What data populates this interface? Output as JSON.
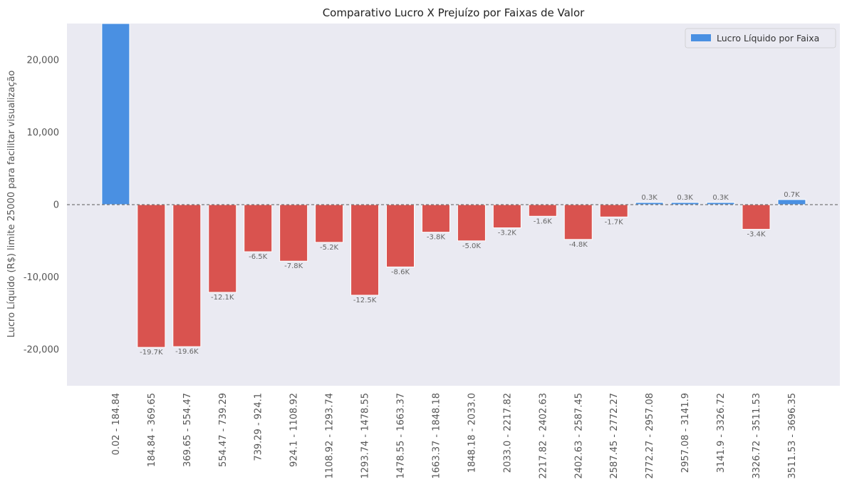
{
  "chart_data": {
    "type": "bar",
    "title": "Comparativo Lucro X Prejuízo por Faixas de Valor",
    "ylabel": "Lucro Líquido (R$) limite 25000 para facilitar visualização",
    "xlabel": "",
    "ylim": [
      -25000,
      25000
    ],
    "yticks": [
      -20000,
      -10000,
      0,
      10000,
      20000
    ],
    "ytick_labels": [
      "-20,000",
      "-10,000",
      "0",
      "10,000",
      "20,000"
    ],
    "categories": [
      "0.02 - 184.84",
      "184.84 - 369.65",
      "369.65 - 554.47",
      "554.47 - 739.29",
      "739.29 - 924.1",
      "924.1 - 1108.92",
      "1108.92 - 1293.74",
      "1293.74 - 1478.55",
      "1478.55 - 1663.37",
      "1663.37 - 1848.18",
      "1848.18 - 2033.0",
      "2033.0 - 2217.82",
      "2217.82 - 2402.63",
      "2402.63 - 2587.45",
      "2587.45 - 2772.27",
      "2772.27 - 2957.08",
      "2957.08 - 3141.9",
      "3141.9 - 3326.72",
      "3326.72 - 3511.53",
      "3511.53 - 3696.35"
    ],
    "values": [
      25000,
      -19700,
      -19600,
      -12100,
      -6500,
      -7800,
      -5200,
      -12500,
      -8600,
      -3800,
      -5000,
      -3200,
      -1600,
      -4800,
      -1700,
      300,
      300,
      300,
      -3400,
      700
    ],
    "bar_labels": [
      "",
      "-19.7K",
      "-19.6K",
      "-12.1K",
      "-6.5K",
      "-7.8K",
      "-5.2K",
      "-12.5K",
      "-8.6K",
      "-3.8K",
      "-5.0K",
      "-3.2K",
      "-1.6K",
      "-4.8K",
      "-1.7K",
      "0.3K",
      "0.3K",
      "0.3K",
      "-3.4K",
      "0.7K"
    ],
    "legend": {
      "label": "Lucro Líquido por Faixa",
      "position": "top-right"
    },
    "colors": {
      "positive": "#4a90e2",
      "negative": "#d9534f",
      "background": "#eaeaf2",
      "zero_line": "#777777"
    },
    "grid": false,
    "zero_line": "dashed"
  }
}
